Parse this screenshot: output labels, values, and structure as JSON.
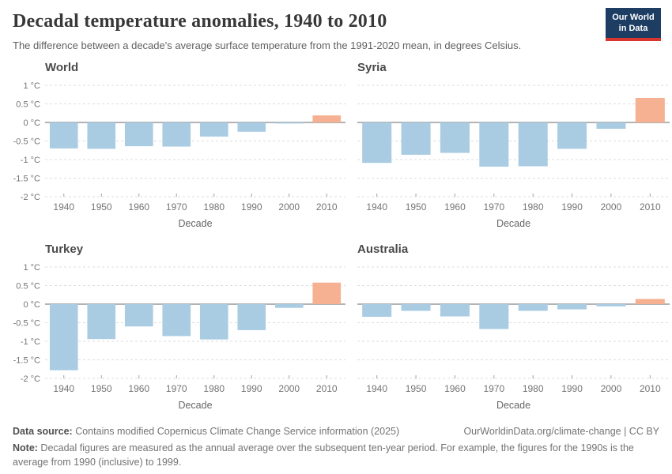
{
  "header": {
    "title": "Decadal temperature anomalies, 1940 to 2010",
    "subtitle": "The difference between a decade's average surface temperature from the 1991-2020 mean, in degrees Celsius.",
    "logo": {
      "line1": "Our World",
      "line2": "in Data"
    }
  },
  "chart_data": {
    "type": "bar",
    "layout": "2x2-small-multiples",
    "categories": [
      "1940",
      "1950",
      "1960",
      "1970",
      "1980",
      "1990",
      "2000",
      "2010"
    ],
    "series": [
      {
        "name": "World",
        "values": [
          -0.7,
          -0.71,
          -0.64,
          -0.65,
          -0.38,
          -0.25,
          -0.03,
          0.19
        ]
      },
      {
        "name": "Syria",
        "values": [
          -1.09,
          -0.87,
          -0.82,
          -1.19,
          -1.18,
          -0.71,
          -0.17,
          0.66
        ]
      },
      {
        "name": "Turkey",
        "values": [
          -1.78,
          -0.94,
          -0.6,
          -0.86,
          -0.95,
          -0.7,
          -0.1,
          0.58
        ]
      },
      {
        "name": "Australia",
        "values": [
          -0.34,
          -0.18,
          -0.33,
          -0.67,
          -0.18,
          -0.14,
          -0.06,
          0.14
        ]
      }
    ],
    "xlabel": "Decade",
    "ylabel": "",
    "ylim": [
      -2,
      1
    ],
    "yticks": [
      1,
      0.5,
      0,
      -0.5,
      -1,
      -1.5,
      -2
    ],
    "ytick_labels": [
      "1 °C",
      "0.5 °C",
      "0 °C",
      "-0.5 °C",
      "-1 °C",
      "-1.5 °C",
      "-2 °C"
    ],
    "grid": true,
    "legend": "none",
    "colors": {
      "negative_bar": "#a9cce3",
      "positive_bar": "#f5b191",
      "gridline": "#dcdcdc",
      "zero_line": "#b3b3b3",
      "tick_mark": "#a0a0a0",
      "tick_text": "#747474",
      "axis_title_text": "#666666"
    }
  },
  "footer": {
    "source_label": "Data source:",
    "source_text": " Contains modified Copernicus Climate Change Service information (2025)",
    "citation": "OurWorldinData.org/climate-change | CC BY",
    "note_label": "Note:",
    "note_text": " Decadal figures are measured as the annual average over the subsequent ten-year period. For example, the figures for the 1990s is the average from 1990 (inclusive) to 1999."
  }
}
